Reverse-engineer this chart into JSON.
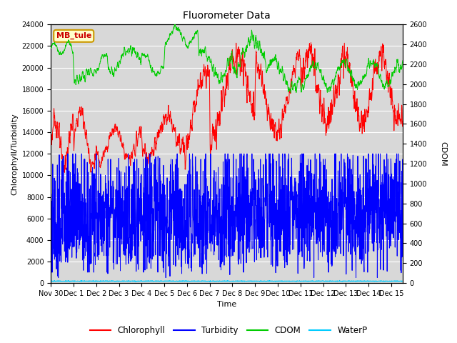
{
  "title": "Fluorometer Data",
  "xlabel": "Time",
  "ylabel_left": "Chlorophyll/Turbidity",
  "ylabel_right": "CDOM",
  "ylim_left": [
    0,
    24000
  ],
  "ylim_right": [
    0,
    2600
  ],
  "yticks_left": [
    0,
    2000,
    4000,
    6000,
    8000,
    10000,
    12000,
    14000,
    16000,
    18000,
    20000,
    22000,
    24000
  ],
  "yticks_right": [
    0,
    200,
    400,
    600,
    800,
    1000,
    1200,
    1400,
    1600,
    1800,
    2000,
    2200,
    2400,
    2600
  ],
  "xlim": [
    0,
    15.5
  ],
  "xtick_positions": [
    0,
    1,
    2,
    3,
    4,
    5,
    6,
    7,
    8,
    9,
    10,
    11,
    12,
    13,
    14,
    15
  ],
  "xtick_labels": [
    "Nov 30",
    "Dec 1",
    "Dec 2",
    "Dec 3",
    "Dec 4",
    "Dec 5",
    "Dec 6",
    "Dec 7",
    "Dec 8",
    "Dec 9",
    "Dec 10",
    "Dec 11",
    "Dec 12",
    "Dec 13",
    "Dec 14",
    "Dec 15"
  ],
  "station_label": "MB_tule",
  "outer_bg": "#ffffff",
  "plot_bg": "#d8d8d8",
  "grid_color": "#ffffff",
  "line_colors": {
    "chlorophyll": "#ff0000",
    "turbidity": "#0000ff",
    "cdom": "#00cc00",
    "waterp": "#00ccff"
  },
  "line_width": 0.7,
  "title_fontsize": 10,
  "axis_fontsize": 8,
  "tick_fontsize": 7,
  "seed": 123
}
